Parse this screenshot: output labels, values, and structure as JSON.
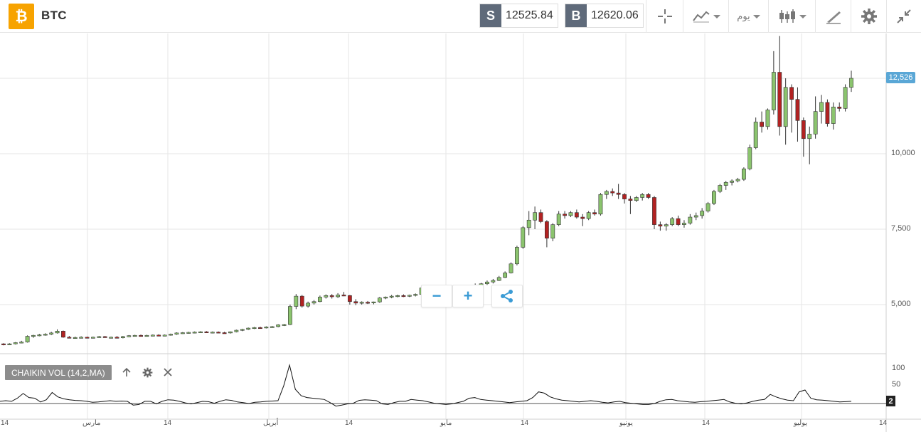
{
  "header": {
    "symbol": "BTC",
    "logo_glyph": "₿",
    "sell_tag": "S",
    "sell_price": "12525.84",
    "buy_tag": "B",
    "buy_price": "12620.06",
    "timeframe_label": "يوم",
    "icons": [
      "crosshair-icon",
      "line-chart-type-icon",
      "candlestick-type-icon",
      "drawing-tools-icon",
      "settings-icon",
      "minimize-icon"
    ]
  },
  "chart": {
    "current_price_label": "12,526",
    "y_labels": [
      "10,000",
      "7,500",
      "5,000"
    ],
    "x_labels": [
      "14",
      "مارس",
      "14",
      "أبريل",
      "14",
      "مايو",
      "14",
      "يونيو",
      "14",
      "يوليو",
      "14"
    ],
    "zoom_out_label": "−",
    "zoom_in_label": "+",
    "colors": {
      "up": "#8bc46e",
      "down": "#b22222",
      "wick": "#333333",
      "grid": "#e6e6e6",
      "price_tag": "#5aa7d6"
    }
  },
  "indicator": {
    "label": "CHAIKIN VOL (14,2,MA)",
    "y_labels": [
      "100",
      "50"
    ],
    "current_value": "2"
  },
  "chart_data": {
    "type": "candlestick",
    "y_unit": "USD",
    "ylim": [
      3000,
      14000
    ],
    "candles": [
      [
        3700,
        3720,
        3650,
        3680
      ],
      [
        3690,
        3720,
        3660,
        3700
      ],
      [
        3700,
        3760,
        3680,
        3740
      ],
      [
        3740,
        3800,
        3720,
        3760
      ],
      [
        3760,
        3980,
        3740,
        3950
      ],
      [
        3950,
        4000,
        3900,
        3980
      ],
      [
        3980,
        4030,
        3950,
        4000
      ],
      [
        4000,
        4050,
        3970,
        4020
      ],
      [
        4020,
        4100,
        3990,
        4060
      ],
      [
        4060,
        4180,
        4040,
        4120
      ],
      [
        4120,
        4140,
        3900,
        3920
      ],
      [
        3920,
        3960,
        3880,
        3900
      ],
      [
        3900,
        3940,
        3870,
        3910
      ],
      [
        3910,
        3950,
        3880,
        3920
      ],
      [
        3920,
        3940,
        3890,
        3900
      ],
      [
        3900,
        3940,
        3880,
        3920
      ],
      [
        3920,
        3960,
        3900,
        3940
      ],
      [
        3940,
        3960,
        3900,
        3910
      ],
      [
        3910,
        3940,
        3890,
        3920
      ],
      [
        3920,
        3960,
        3880,
        3900
      ],
      [
        3900,
        3960,
        3880,
        3940
      ],
      [
        3940,
        3990,
        3920,
        3970
      ],
      [
        3970,
        4000,
        3950,
        3980
      ],
      [
        3980,
        4010,
        3950,
        3970
      ],
      [
        3970,
        4000,
        3940,
        3980
      ],
      [
        3980,
        4010,
        3950,
        3990
      ],
      [
        3990,
        4020,
        3960,
        3980
      ],
      [
        3980,
        4010,
        3950,
        3990
      ],
      [
        3990,
        4040,
        3970,
        4020
      ],
      [
        4020,
        4080,
        4000,
        4060
      ],
      [
        4060,
        4090,
        4030,
        4070
      ],
      [
        4070,
        4100,
        4040,
        4080
      ],
      [
        4080,
        4110,
        4050,
        4090
      ],
      [
        4090,
        4120,
        4060,
        4100
      ],
      [
        4100,
        4120,
        4060,
        4080
      ],
      [
        4080,
        4110,
        4050,
        4090
      ],
      [
        4090,
        4110,
        4060,
        4070
      ],
      [
        4070,
        4100,
        4040,
        4060
      ],
      [
        4060,
        4110,
        4040,
        4100
      ],
      [
        4100,
        4170,
        4080,
        4150
      ],
      [
        4150,
        4200,
        4120,
        4180
      ],
      [
        4180,
        4240,
        4160,
        4220
      ],
      [
        4220,
        4260,
        4190,
        4240
      ],
      [
        4240,
        4270,
        4200,
        4230
      ],
      [
        4230,
        4280,
        4210,
        4260
      ],
      [
        4260,
        4290,
        4230,
        4270
      ],
      [
        4270,
        4350,
        4250,
        4330
      ],
      [
        4330,
        4360,
        4290,
        4340
      ],
      [
        4340,
        5000,
        4320,
        4940
      ],
      [
        4940,
        5350,
        4850,
        5280
      ],
      [
        5280,
        5320,
        4900,
        4950
      ],
      [
        4950,
        5100,
        4900,
        5050
      ],
      [
        5050,
        5150,
        5000,
        5100
      ],
      [
        5100,
        5300,
        5080,
        5250
      ],
      [
        5250,
        5340,
        5200,
        5300
      ],
      [
        5300,
        5350,
        5200,
        5260
      ],
      [
        5260,
        5380,
        5220,
        5320
      ],
      [
        5320,
        5420,
        5280,
        5300
      ],
      [
        5300,
        5320,
        5000,
        5100
      ],
      [
        5100,
        5180,
        4980,
        5050
      ],
      [
        5050,
        5110,
        5000,
        5080
      ],
      [
        5080,
        5120,
        5020,
        5060
      ],
      [
        5060,
        5100,
        5010,
        5090
      ],
      [
        5090,
        5250,
        5060,
        5220
      ],
      [
        5220,
        5270,
        5180,
        5250
      ],
      [
        5250,
        5320,
        5210,
        5280
      ],
      [
        5280,
        5330,
        5240,
        5300
      ],
      [
        5300,
        5340,
        5250,
        5290
      ],
      [
        5290,
        5330,
        5250,
        5310
      ],
      [
        5310,
        5370,
        5270,
        5340
      ],
      [
        5340,
        5600,
        5320,
        5550
      ],
      [
        5550,
        5600,
        5450,
        5500
      ],
      [
        5500,
        5520,
        5150,
        5200
      ],
      [
        5200,
        5250,
        5100,
        5180
      ],
      [
        5180,
        5220,
        5120,
        5190
      ],
      [
        5190,
        5230,
        5140,
        5200
      ],
      [
        5200,
        5240,
        5160,
        5220
      ],
      [
        5220,
        5400,
        5200,
        5380
      ],
      [
        5380,
        5650,
        5360,
        5600
      ],
      [
        5600,
        5700,
        5550,
        5650
      ],
      [
        5650,
        5720,
        5600,
        5690
      ],
      [
        5690,
        5800,
        5650,
        5750
      ],
      [
        5750,
        5850,
        5700,
        5800
      ],
      [
        5800,
        5950,
        5780,
        5900
      ],
      [
        5900,
        6100,
        5880,
        6050
      ],
      [
        6050,
        6400,
        6030,
        6350
      ],
      [
        6350,
        6950,
        6300,
        6900
      ],
      [
        6900,
        7600,
        6850,
        7550
      ],
      [
        7550,
        8100,
        7300,
        7800
      ],
      [
        7800,
        8250,
        7500,
        8050
      ],
      [
        8050,
        8150,
        7700,
        7750
      ],
      [
        7750,
        7800,
        6900,
        7200
      ],
      [
        7200,
        7700,
        7100,
        7650
      ],
      [
        7650,
        8100,
        7600,
        8000
      ],
      [
        8000,
        8100,
        7850,
        7950
      ],
      [
        7950,
        8100,
        7900,
        8050
      ],
      [
        8050,
        8150,
        7850,
        7900
      ],
      [
        7900,
        8000,
        7600,
        7850
      ],
      [
        7850,
        8100,
        7800,
        8050
      ],
      [
        8050,
        8150,
        7950,
        8000
      ],
      [
        8000,
        8700,
        7950,
        8650
      ],
      [
        8650,
        8800,
        8500,
        8750
      ],
      [
        8750,
        8850,
        8600,
        8700
      ],
      [
        8700,
        9000,
        8500,
        8650
      ],
      [
        8650,
        8700,
        8350,
        8500
      ],
      [
        8500,
        8600,
        8000,
        8450
      ],
      [
        8450,
        8600,
        8400,
        8550
      ],
      [
        8550,
        8700,
        8450,
        8650
      ],
      [
        8650,
        8700,
        8500,
        8550
      ],
      [
        8550,
        8600,
        7500,
        7650
      ],
      [
        7650,
        7750,
        7450,
        7600
      ],
      [
        7600,
        7700,
        7450,
        7650
      ],
      [
        7650,
        7900,
        7600,
        7850
      ],
      [
        7850,
        7950,
        7600,
        7650
      ],
      [
        7650,
        7800,
        7550,
        7700
      ],
      [
        7700,
        8000,
        7650,
        7900
      ],
      [
        7900,
        8050,
        7800,
        7950
      ],
      [
        7950,
        8200,
        7850,
        8100
      ],
      [
        8100,
        8400,
        8050,
        8350
      ],
      [
        8350,
        8800,
        8300,
        8750
      ],
      [
        8750,
        9000,
        8700,
        8950
      ],
      [
        8950,
        9100,
        8800,
        9050
      ],
      [
        9050,
        9150,
        8950,
        9100
      ],
      [
        9100,
        9200,
        9050,
        9150
      ],
      [
        9150,
        9550,
        9100,
        9500
      ],
      [
        9500,
        10300,
        9450,
        10200
      ],
      [
        10200,
        11200,
        10150,
        11050
      ],
      [
        11050,
        11400,
        10700,
        10900
      ],
      [
        10900,
        11500,
        10800,
        11450
      ],
      [
        11450,
        13400,
        11300,
        12700
      ],
      [
        12700,
        13900,
        10600,
        10900
      ],
      [
        10900,
        12500,
        10300,
        12200
      ],
      [
        12200,
        12300,
        10700,
        11800
      ],
      [
        11800,
        12200,
        10400,
        11100
      ],
      [
        11100,
        11200,
        9900,
        10500
      ],
      [
        10500,
        10900,
        9650,
        10650
      ],
      [
        10650,
        11900,
        10500,
        11400
      ],
      [
        11400,
        11950,
        11000,
        11700
      ],
      [
        11700,
        11800,
        10900,
        11000
      ],
      [
        11000,
        11700,
        10800,
        11550
      ],
      [
        11550,
        11700,
        11400,
        11500
      ],
      [
        11500,
        12300,
        11400,
        12200
      ],
      [
        12200,
        12750,
        12050,
        12500
      ]
    ],
    "indicator": {
      "name": "CHAIKIN VOL (14,2,MA)",
      "ylim": [
        -25,
        115
      ],
      "values": [
        0,
        2,
        0,
        10,
        25,
        12,
        10,
        -2,
        5,
        28,
        14,
        8,
        5,
        3,
        2,
        0,
        -3,
        -2,
        0,
        2,
        0,
        1,
        0,
        -12,
        -10,
        0,
        0,
        -8,
        0,
        5,
        4,
        0,
        -5,
        -8,
        -4,
        0,
        -1,
        -6,
        0,
        5,
        3,
        -2,
        -4,
        -7,
        -3,
        -2,
        0,
        1,
        2,
        50,
        115,
        38,
        18,
        12,
        10,
        8,
        6,
        -4,
        -15,
        -12,
        -8,
        -6,
        3,
        5,
        4,
        2,
        -8,
        -10,
        -4,
        0,
        0,
        6,
        4,
        2,
        -2,
        -6,
        -8,
        -10,
        -8,
        -4,
        0,
        10,
        12,
        6,
        4,
        2,
        0,
        -2,
        -4,
        -2,
        0,
        2,
        12,
        30,
        26,
        14,
        8,
        4,
        2,
        0,
        -2,
        0,
        2,
        0,
        -3,
        -5,
        -2,
        0,
        -4,
        -6,
        -8,
        -10,
        -10,
        -7,
        0,
        5,
        6,
        2,
        0,
        -2,
        -3,
        -1,
        0,
        2,
        4,
        6,
        -2,
        -6,
        -8,
        -5,
        0,
        4,
        6,
        22,
        14,
        8,
        4,
        2,
        30,
        36,
        10,
        5,
        4,
        2,
        0,
        -2,
        -1,
        0
      ]
    }
  }
}
